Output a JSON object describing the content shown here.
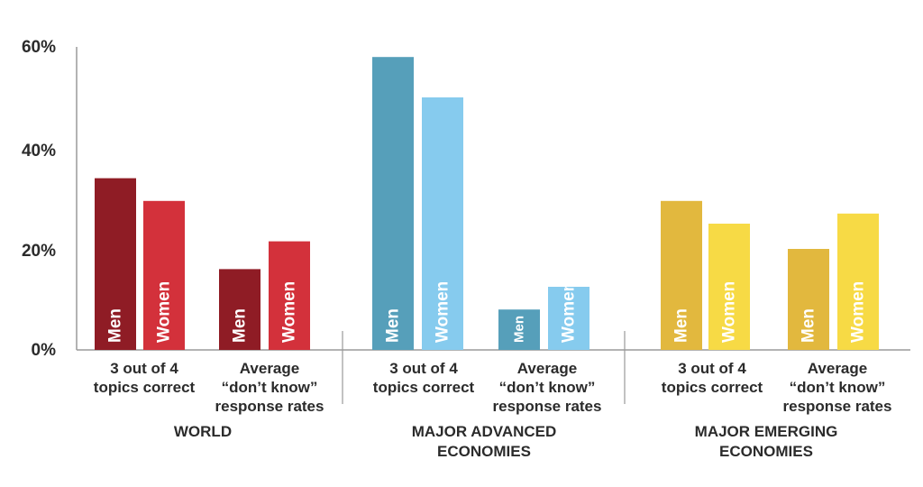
{
  "chart_data": {
    "type": "bar",
    "ylim": [
      0,
      60
    ],
    "yticks": [
      "0%",
      "20%",
      "40%",
      "60%"
    ],
    "colors": {
      "world_men": "#8f1c25",
      "world_women": "#d3313b",
      "advanced_men": "#569fba",
      "advanced_women": "#86cbee",
      "emerging_men": "#e2b83e",
      "emerging_women": "#f7da45",
      "axis": "#9a9a9a",
      "text": "#2b2b2b"
    },
    "groups": [
      {
        "name": [
          "WORLD"
        ],
        "categories": [
          {
            "label": [
              "3 out of 4",
              "topics correct"
            ],
            "men": 34,
            "women": 29.5
          },
          {
            "label": [
              "Average",
              "“don’t know”",
              "response rates"
            ],
            "men": 16,
            "women": 21.5
          }
        ]
      },
      {
        "name": [
          "MAJOR ADVANCED",
          "ECONOMIES"
        ],
        "categories": [
          {
            "label": [
              "3 out of 4",
              "topics correct"
            ],
            "men": 58,
            "women": 50
          },
          {
            "label": [
              "Average",
              "“don’t know”",
              "response rates"
            ],
            "men": 8,
            "women": 12.5
          }
        ]
      },
      {
        "name": [
          "MAJOR EMERGING",
          "ECONOMIES"
        ],
        "categories": [
          {
            "label": [
              "3 out of 4",
              "topics correct"
            ],
            "men": 29.5,
            "women": 25
          },
          {
            "label": [
              "Average",
              "“don’t know”",
              "response rates"
            ],
            "men": 20,
            "women": 27
          }
        ]
      }
    ],
    "bar_labels": {
      "men": "Men",
      "women": "Women"
    }
  }
}
